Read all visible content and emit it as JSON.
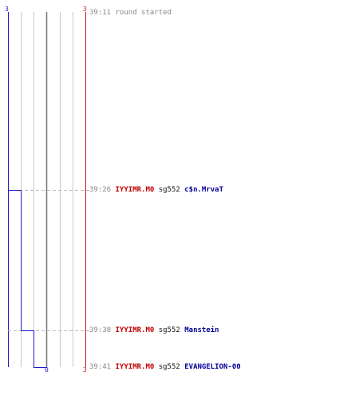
{
  "scores": {
    "top_left": "3",
    "top_right": "3",
    "bottom_mid": "0",
    "bottom_right": "3"
  },
  "colors": {
    "blue_team": "#1a1ac8",
    "red_team": "#d01818",
    "grid": "#c8c8c8",
    "midline": "#777777",
    "dashed": "#bbbbbb"
  },
  "events": [
    {
      "time": "39:11",
      "text": "round started"
    },
    {
      "time": "39:26",
      "killer": "IYYIMR.M0",
      "weapon": "sg552",
      "victim": "c$n.MrvaT"
    },
    {
      "time": "39:38",
      "killer": "IYYIMR.M0",
      "weapon": "sg552",
      "victim": "Manstein"
    },
    {
      "time": "39:41",
      "killer": "IYYIMR.M0",
      "weapon": "sg552",
      "victim": "EVANGELION-00"
    }
  ]
}
